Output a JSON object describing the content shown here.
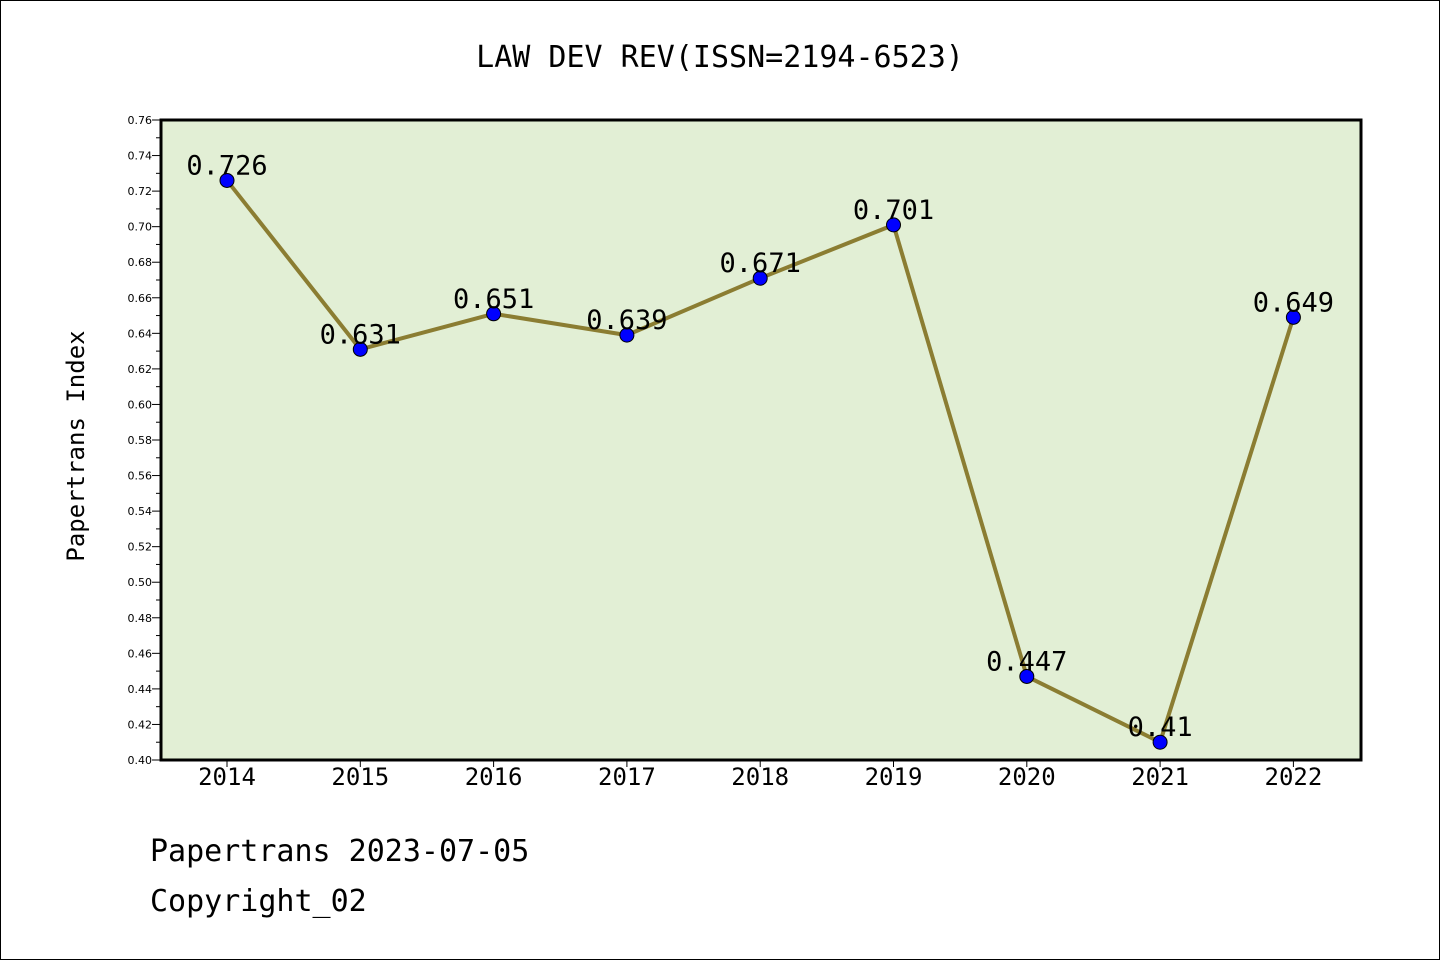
{
  "chart_data": {
    "type": "line",
    "title": "LAW DEV REV(ISSN=2194-6523)",
    "ylabel": "Papertrans Index",
    "xlabel": "",
    "categories": [
      "2014",
      "2015",
      "2016",
      "2017",
      "2018",
      "2019",
      "2020",
      "2021",
      "2022"
    ],
    "values": [
      0.726,
      0.631,
      0.651,
      0.639,
      0.671,
      0.701,
      0.447,
      0.41,
      0.649
    ],
    "data_labels": [
      "0.726",
      "0.631",
      "0.651",
      "0.639",
      "0.671",
      "0.701",
      "0.447",
      "0.41",
      "0.649"
    ],
    "ylim": [
      0.4,
      0.76
    ],
    "yticks": [
      "0.40",
      "0.42",
      "0.44",
      "0.46",
      "0.48",
      "0.50",
      "0.52",
      "0.54",
      "0.56",
      "0.58",
      "0.60",
      "0.62",
      "0.64",
      "0.66",
      "0.68",
      "0.70",
      "0.72",
      "0.74",
      "0.76"
    ],
    "colors": {
      "plot_bg": "#e2efd5",
      "line": "#8b7d32",
      "marker": "#0000ff"
    }
  },
  "footer": {
    "line1": "Papertrans 2023-07-05",
    "line2": "Copyright_02"
  }
}
